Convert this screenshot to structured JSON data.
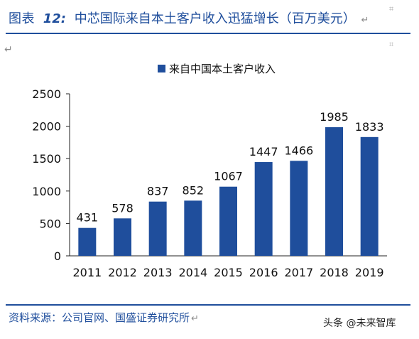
{
  "figure": {
    "label": "图表",
    "number": "12:",
    "text": "中芯国际来自本土客户收入迅猛增长（百万美元）",
    "source": "资料来源：公司官网、国盛证券研究所",
    "watermark": "头条 @未来智库"
  },
  "colors": {
    "bar": "#1f4e9c",
    "text": "#1f4e9c",
    "axis": "#222222"
  },
  "chart_data": {
    "type": "bar",
    "categories": [
      "2011",
      "2012",
      "2013",
      "2014",
      "2015",
      "2016",
      "2017",
      "2018",
      "2019"
    ],
    "series": [
      {
        "name": "来自中国本土客户收入",
        "values": [
          431,
          578,
          837,
          852,
          1067,
          1447,
          1466,
          1985,
          1833
        ]
      }
    ],
    "ylim": [
      0,
      2500
    ],
    "yticks": [
      0,
      500,
      1000,
      1500,
      2000,
      2500
    ],
    "grid": false,
    "legend_position": "top-center",
    "data_labels": true
  }
}
